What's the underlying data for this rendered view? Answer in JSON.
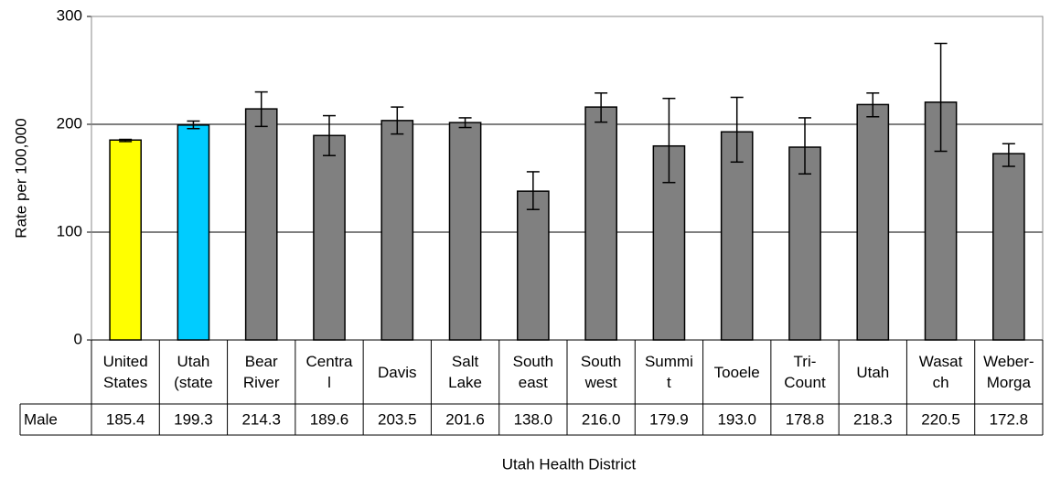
{
  "chart_data": {
    "type": "bar",
    "y_label": "Rate per 100,000",
    "x_label": "Utah Health District",
    "categories": [
      "United\nStates",
      "Utah\n(state",
      "Bear\nRiver",
      "Centra\nl",
      "Davis",
      "Salt\nLake",
      "South\neast",
      "South\nwest",
      "Summi\nt",
      "Tooele",
      "Tri-\nCount",
      "Utah",
      "Wasat\nch",
      "Weber-\nMorga"
    ],
    "series": [
      {
        "name": "Male",
        "values": [
          185.4,
          199.3,
          214.3,
          189.6,
          203.5,
          201.6,
          138.0,
          216.0,
          179.9,
          193.0,
          178.8,
          218.3,
          220.5,
          172.8
        ],
        "value_labels": [
          "185.4",
          "199.3",
          "214.3",
          "189.6",
          "203.5",
          "201.6",
          "138.0",
          "216.0",
          "179.9",
          "193.0",
          "178.8",
          "218.3",
          "220.5",
          "172.8"
        ],
        "error_low": [
          184,
          196,
          198,
          171,
          191,
          197,
          121,
          202,
          146,
          165,
          154,
          207,
          175,
          161
        ],
        "error_high": [
          186,
          203,
          230,
          208,
          216,
          206,
          156,
          229,
          224,
          225,
          206,
          229,
          275,
          182
        ],
        "colors": [
          "#ffff00",
          "#00ccff",
          "#808080",
          "#808080",
          "#808080",
          "#808080",
          "#808080",
          "#808080",
          "#808080",
          "#808080",
          "#808080",
          "#808080",
          "#808080",
          "#808080"
        ]
      }
    ],
    "ylim": [
      0,
      300
    ],
    "yticks": [
      0,
      100,
      200,
      300
    ],
    "grid": true
  }
}
